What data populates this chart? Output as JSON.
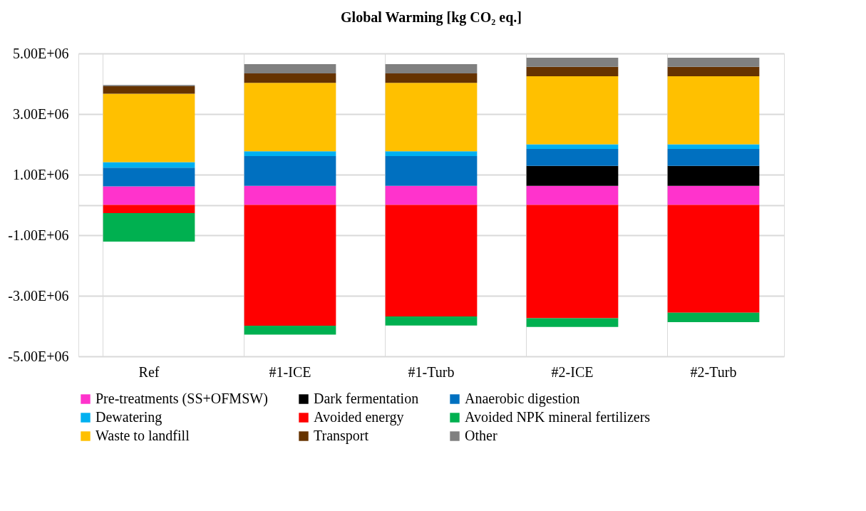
{
  "chart_data": {
    "type": "bar",
    "title": "Global Warming [kg CO₂ eq.]",
    "stacked": true,
    "grid": true,
    "legend": "bottom",
    "categories": [
      "Ref",
      "#1-ICE",
      "#1-Turb",
      "#2-ICE",
      "#2-Turb"
    ],
    "ylim": [
      -5000000,
      5000000
    ],
    "yticks": [
      {
        "value": -5000000,
        "label": "-5.00E+06"
      },
      {
        "value": -3000000,
        "label": "-3.00E+06"
      },
      {
        "value": -1000000,
        "label": "-1.00E+06"
      },
      {
        "value": 0,
        "label": null
      },
      {
        "value": 1000000,
        "label": "1.00E+06"
      },
      {
        "value": 3000000,
        "label": "3.00E+06"
      },
      {
        "value": 5000000,
        "label": "5.00E+06"
      }
    ],
    "series": [
      {
        "name": "Pre-treatments (SS+OFMSW)",
        "color": "#ff33cc",
        "values": [
          610000,
          630000,
          630000,
          630000,
          630000
        ]
      },
      {
        "name": "Dark fermentation",
        "color": "#000000",
        "values": [
          0,
          0,
          0,
          660000,
          660000
        ]
      },
      {
        "name": "Anaerobic digestion",
        "color": "#0070c0",
        "values": [
          620000,
          980000,
          980000,
          560000,
          560000
        ]
      },
      {
        "name": "Dewatering",
        "color": "#00b0f0",
        "values": [
          180000,
          160000,
          160000,
          150000,
          150000
        ]
      },
      {
        "name": "Avoided energy",
        "color": "#ff0000",
        "values": [
          -270000,
          -3990000,
          -3680000,
          -3740000,
          -3560000
        ]
      },
      {
        "name": "Avoided NPK mineral fertilizers",
        "color": "#00b050",
        "values": [
          -940000,
          -290000,
          -300000,
          -290000,
          -310000
        ]
      },
      {
        "name": "Waste to landfill",
        "color": "#ffc000",
        "values": [
          2260000,
          2260000,
          2260000,
          2250000,
          2250000
        ]
      },
      {
        "name": "Transport",
        "color": "#663300",
        "values": [
          250000,
          310000,
          310000,
          310000,
          310000
        ]
      },
      {
        "name": "Other",
        "color": "#808080",
        "values": [
          40000,
          310000,
          310000,
          300000,
          300000
        ]
      }
    ]
  }
}
